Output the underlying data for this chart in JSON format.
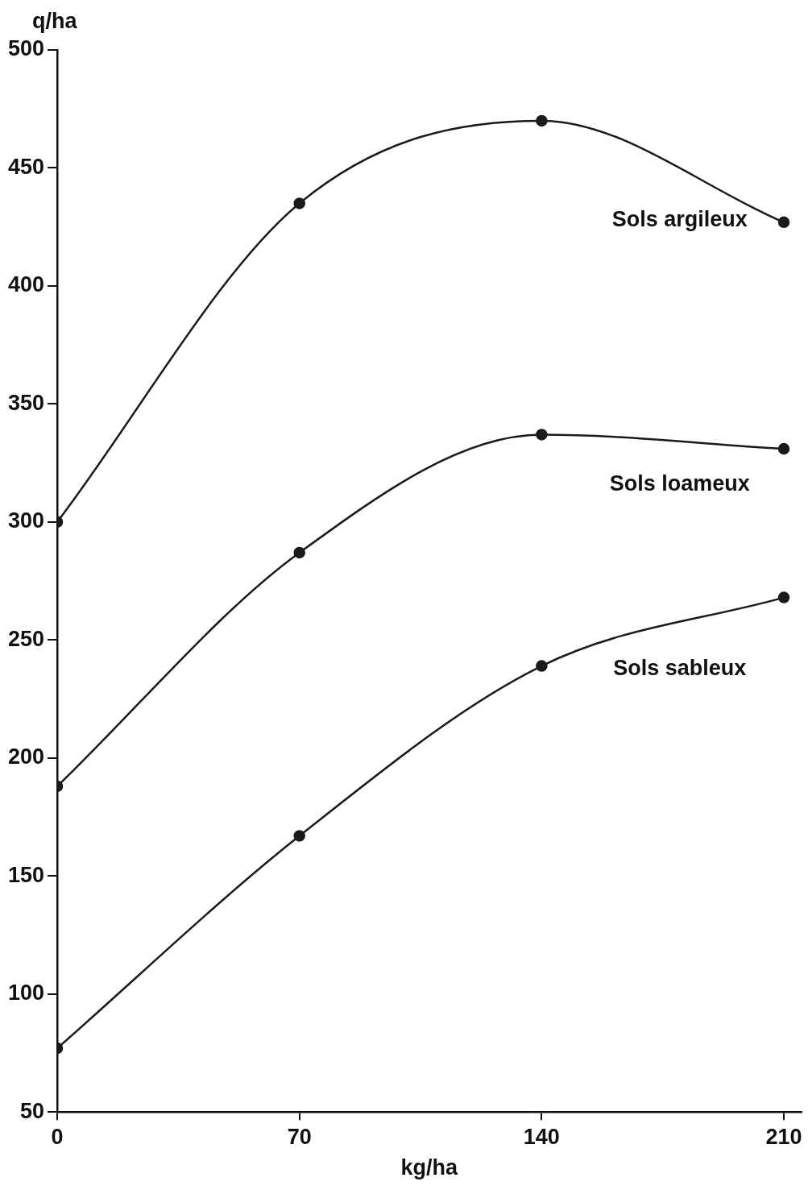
{
  "chart_data": {
    "type": "line",
    "xlabel": "kg/ha",
    "ylabel": "q/ha",
    "x": [
      0,
      70,
      140,
      210
    ],
    "xlim": [
      0,
      215
    ],
    "xticks": [
      0,
      70,
      140,
      210
    ],
    "ylim": [
      50,
      500
    ],
    "yticks": [
      50,
      100,
      150,
      200,
      250,
      300,
      350,
      400,
      450,
      500
    ],
    "grid": false,
    "legend": false,
    "marker": "circle",
    "line_style": "solid",
    "series": [
      {
        "name": "Sols argileux",
        "color": "#1a1a1a",
        "values": [
          300,
          435,
          470,
          427
        ]
      },
      {
        "name": "Sols loameux",
        "color": "#1a1a1a",
        "values": [
          188,
          287,
          337,
          331
        ]
      },
      {
        "name": "Sols sableux",
        "color": "#1a1a1a",
        "values": [
          77,
          167,
          239,
          268
        ]
      }
    ]
  }
}
